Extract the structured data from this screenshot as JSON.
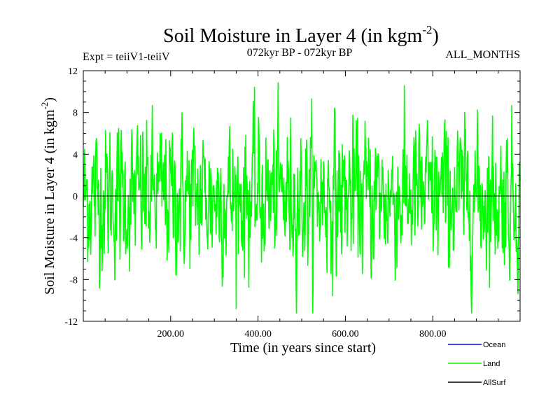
{
  "chart_data": {
    "type": "line",
    "title_main": "Soil Moisture in Layer 4 (in kgm",
    "title_sup": "-2",
    "title_close": ")",
    "subtitle_left": "Expt = teiiV1-teiiV",
    "subtitle_center": "072kyr BP - 072kyr BP",
    "subtitle_right": "ALL_MONTHS",
    "xlabel": "Time (in years since start)",
    "ylabel_main": "Soil Moisture in Layer 4 (in kgm",
    "ylabel_sup": "-2",
    "ylabel_close": ")",
    "xlim": [
      0,
      1000
    ],
    "ylim": [
      -12,
      12
    ],
    "x_ticks": [
      200,
      400,
      600,
      800
    ],
    "x_tick_labels": [
      "200.00",
      "400.00",
      "600.00",
      "800.00"
    ],
    "y_ticks": [
      12,
      8,
      4,
      0,
      -4,
      -8,
      -12
    ],
    "y_tick_labels": [
      "12",
      "8",
      "4",
      "0",
      "-4",
      "-8",
      "-12"
    ],
    "zero_line": true,
    "legend_position": "bottom-right",
    "series": [
      {
        "name": "Ocean",
        "color": "#0000ff",
        "values": []
      },
      {
        "name": "Land",
        "color": "#00ff00",
        "values": []
      },
      {
        "name": "AllSurf",
        "color": "#000000",
        "values": []
      }
    ]
  }
}
